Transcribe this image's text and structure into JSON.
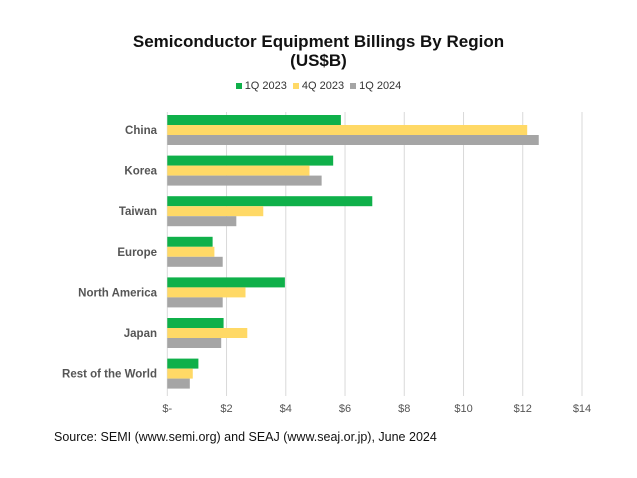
{
  "chart_data": {
    "type": "bar",
    "orientation": "horizontal",
    "title": "Semiconductor Equipment Billings By Region",
    "subtitle": "(US$B)",
    "categories": [
      "China",
      "Korea",
      "Taiwan",
      "Europe",
      "North America",
      "Japan",
      "Rest of the World"
    ],
    "series": [
      {
        "name": "1Q 2023",
        "color": "#0fb04a",
        "values": [
          5.86,
          5.6,
          6.92,
          1.53,
          3.97,
          1.9,
          1.05
        ]
      },
      {
        "name": "4Q 2023",
        "color": "#ffd966",
        "values": [
          12.15,
          4.8,
          3.24,
          1.59,
          2.64,
          2.7,
          0.86
        ]
      },
      {
        "name": "1Q 2024",
        "color": "#a5a5a5",
        "values": [
          12.54,
          5.21,
          2.33,
          1.87,
          1.87,
          1.82,
          0.76
        ]
      }
    ],
    "xlim": [
      0,
      14
    ],
    "xticks": [
      0,
      2,
      4,
      6,
      8,
      10,
      12,
      14
    ],
    "xtick_labels": [
      "$-",
      "$2",
      "$4",
      "$6",
      "$8",
      "$10",
      "$12",
      "$14"
    ],
    "grid": true,
    "legend_position": "top"
  },
  "source": "Source: SEMI (www.semi.org) and SEAJ (www.seaj.or.jp), June 2024"
}
